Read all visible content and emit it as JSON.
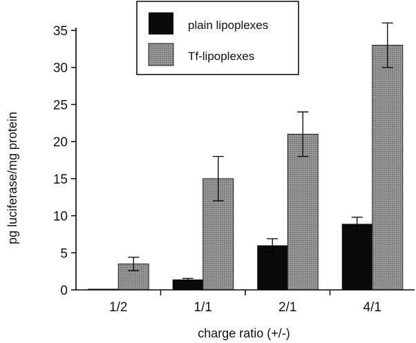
{
  "chart_data": {
    "type": "bar",
    "title": "",
    "xlabel": "charge ratio (+/-)",
    "ylabel": "pg luciferase/mg protein",
    "ylim": [
      0,
      35
    ],
    "yticks": [
      0,
      5,
      10,
      15,
      20,
      25,
      30,
      35
    ],
    "categories": [
      "1/2",
      "1/1",
      "2/1",
      "4/1"
    ],
    "legend_position": "top-center",
    "series": [
      {
        "name": "plain lipoplexes",
        "color": "#0a0a0a",
        "values": [
          0.1,
          1.4,
          6.0,
          8.9
        ],
        "errors": [
          0,
          0.15,
          0.9,
          0.9
        ]
      },
      {
        "name": "Tf-lipoplexes",
        "color": "#8a8a8a",
        "values": [
          3.5,
          15.0,
          21.0,
          33.0
        ],
        "errors": [
          0.9,
          3.0,
          3.0,
          3.0
        ]
      }
    ]
  }
}
